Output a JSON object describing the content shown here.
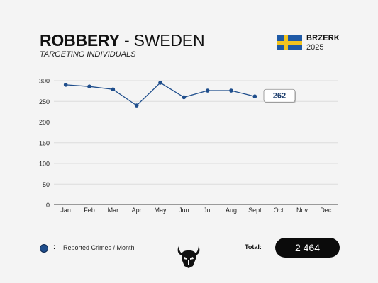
{
  "header": {
    "title_bold": "ROBBERY",
    "title_rest": " - SWEDEN",
    "subtitle": "TARGETING INDIVIDUALS",
    "brand": "BRZERK",
    "year": "2025"
  },
  "legend": {
    "colon": ":",
    "label": "Reported Crimes / Month"
  },
  "total": {
    "label": "Total:",
    "value": "2 464"
  },
  "colors": {
    "line": "#1f4e8c",
    "grid": "#dcdcdc",
    "axis": "#9a9a9a",
    "flag_blue": "#1f5aa6",
    "flag_yellow": "#f2c420"
  },
  "chart_data": {
    "type": "line",
    "categories": [
      "Jan",
      "Feb",
      "Mar",
      "Apr",
      "May",
      "Jun",
      "Jul",
      "Aug",
      "Sept",
      "Oct",
      "Nov",
      "Dec"
    ],
    "series": [
      {
        "name": "Reported Crimes / Month",
        "values": [
          290,
          286,
          279,
          240,
          295,
          260,
          276,
          276,
          262,
          null,
          null,
          null
        ]
      }
    ],
    "yticks": [
      0,
      50,
      100,
      150,
      200,
      250,
      300
    ],
    "ylim": [
      0,
      300
    ],
    "grid": true,
    "callout": "262"
  }
}
